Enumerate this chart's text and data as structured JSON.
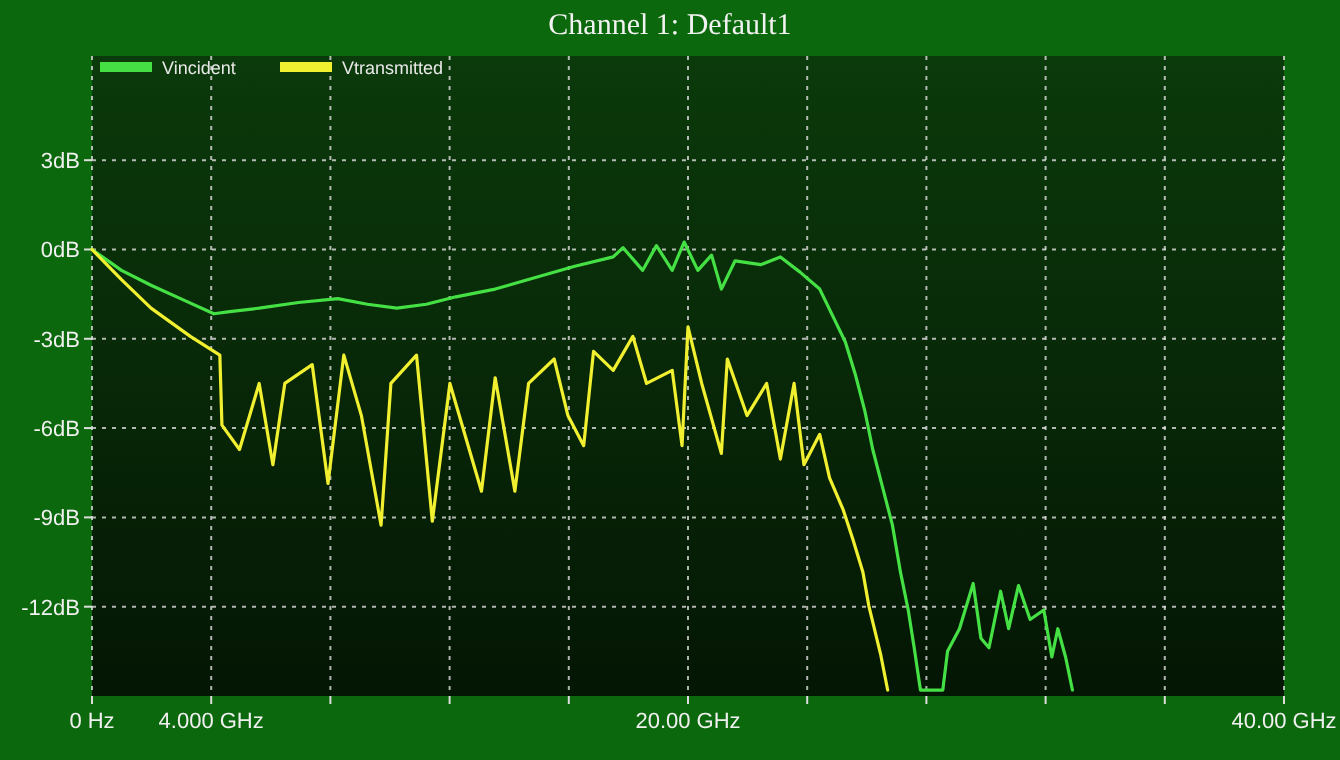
{
  "chart_data": {
    "type": "line",
    "title": "Channel 1: Default1",
    "xlim": [
      0,
      40
    ],
    "xticks": [
      {
        "value": 0,
        "label": "0 Hz"
      },
      {
        "value": 4,
        "label": "4.000 GHz"
      },
      {
        "value": 8,
        "label": null
      },
      {
        "value": 12,
        "label": null
      },
      {
        "value": 16,
        "label": null
      },
      {
        "value": 20,
        "label": "20.00 GHz"
      },
      {
        "value": 24,
        "label": null
      },
      {
        "value": 28,
        "label": null
      },
      {
        "value": 32,
        "label": null
      },
      {
        "value": 36,
        "label": null
      },
      {
        "value": 40,
        "label": "40.00 GHz"
      }
    ],
    "ylim": [
      -15,
      6.5
    ],
    "yticks": [
      {
        "value": 3,
        "label": "3dB"
      },
      {
        "value": 0,
        "label": "0dB"
      },
      {
        "value": -3,
        "label": "-3dB"
      },
      {
        "value": -6,
        "label": "-6dB"
      },
      {
        "value": -9,
        "label": "-9dB"
      },
      {
        "value": -12,
        "label": "-12dB"
      }
    ],
    "grid": true,
    "legend": "top left",
    "line_style": "solid",
    "marker": "none",
    "series": [
      {
        "name": "Vincident",
        "color": "#44e044",
        "x": [
          0,
          0.99,
          1.98,
          2.97,
          4.09,
          4.62,
          5.61,
          6.93,
          8.25,
          9.24,
          10.23,
          11.22,
          12.21,
          13.53,
          14.85,
          16.17,
          17.49,
          17.82,
          18.48,
          18.94,
          19.47,
          19.87,
          20.33,
          20.79,
          21.12,
          21.58,
          22.44,
          23.1,
          23.76,
          24.42,
          24.88,
          25.28,
          25.61,
          25.94,
          26.2,
          26.53,
          26.86,
          27.13,
          27.39,
          27.59,
          27.8,
          28.55,
          28.71,
          29.11,
          29.57,
          29.83,
          30.1,
          30.49,
          30.76,
          31.09,
          31.48,
          31.94,
          32.21,
          32.41,
          32.67,
          32.9
        ],
        "values": [
          0,
          -0.7,
          -1.2,
          -1.65,
          -2.16,
          -2.09,
          -1.97,
          -1.78,
          -1.65,
          -1.84,
          -1.97,
          -1.84,
          -1.59,
          -1.33,
          -0.95,
          -0.57,
          -0.25,
          0.06,
          -0.7,
          0.13,
          -0.7,
          0.25,
          -0.7,
          -0.19,
          -1.33,
          -0.38,
          -0.51,
          -0.25,
          -0.76,
          -1.33,
          -2.28,
          -3.11,
          -4.18,
          -5.45,
          -6.72,
          -7.99,
          -9.26,
          -10.84,
          -12.11,
          -13.38,
          -14.8,
          -14.8,
          -13.5,
          -12.74,
          -11.22,
          -13.06,
          -13.38,
          -11.48,
          -12.74,
          -11.29,
          -12.43,
          -12.11,
          -13.69,
          -12.74,
          -13.69,
          -14.8
        ]
      },
      {
        "name": "Vtransmitted",
        "color": "#f0f030",
        "x": [
          0,
          0.99,
          1.98,
          3.3,
          4.29,
          4.36,
          4.95,
          5.61,
          6.07,
          6.47,
          7.39,
          7.92,
          8.45,
          9.04,
          9.7,
          10.03,
          10.89,
          11.42,
          12.01,
          13.07,
          13.53,
          14.19,
          14.65,
          15.51,
          15.97,
          16.5,
          16.83,
          17.49,
          18.15,
          18.61,
          19.47,
          19.8,
          20,
          20.46,
          21.12,
          21.32,
          21.98,
          22.64,
          23.1,
          23.56,
          23.89,
          24.42,
          24.75,
          25.21,
          25.54,
          25.87,
          26.07,
          26.47,
          26.7
        ],
        "values": [
          0,
          -1.01,
          -1.97,
          -2.92,
          -3.55,
          -5.9,
          -6.72,
          -4.5,
          -7.23,
          -4.5,
          -3.87,
          -7.86,
          -3.55,
          -5.58,
          -9.26,
          -4.5,
          -3.55,
          -9.13,
          -4.5,
          -8.12,
          -4.31,
          -8.12,
          -4.5,
          -3.68,
          -5.58,
          -6.59,
          -3.42,
          -4.06,
          -2.92,
          -4.5,
          -4.06,
          -6.59,
          -2.6,
          -4.5,
          -6.85,
          -3.68,
          -5.58,
          -4.5,
          -7.04,
          -4.5,
          -7.23,
          -6.21,
          -7.67,
          -8.75,
          -9.76,
          -10.84,
          -11.98,
          -13.63,
          -14.8
        ]
      }
    ]
  }
}
